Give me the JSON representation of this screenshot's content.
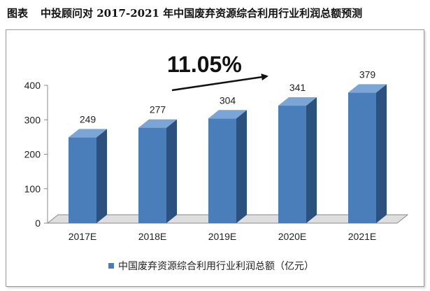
{
  "caption": {
    "label": "图表",
    "title": "中投顾问对 2017-2021 年中国废弃资源综合利用行业利润总额预测"
  },
  "chart_data": {
    "type": "bar",
    "categories": [
      "2017E",
      "2018E",
      "2019E",
      "2020E",
      "2021E"
    ],
    "series": [
      {
        "name": "中国废弃资源综合利用行业利润总额（亿元）",
        "values": [
          249,
          277,
          304,
          341,
          379
        ]
      }
    ],
    "value_labels": [
      "249",
      "277",
      "304",
      "341",
      "379"
    ],
    "ylim": [
      0,
      400
    ],
    "yticks": [
      0,
      100,
      200,
      300,
      400
    ],
    "ytick_labels": [
      "0",
      "100",
      "200",
      "300",
      "400"
    ],
    "grid": false,
    "legend_position": "bottom",
    "annotation": "11.05%",
    "bar_color": "#4a7ebb",
    "bar_side_color": "#2b527e",
    "bar_top_color": "#7aa5d6"
  }
}
